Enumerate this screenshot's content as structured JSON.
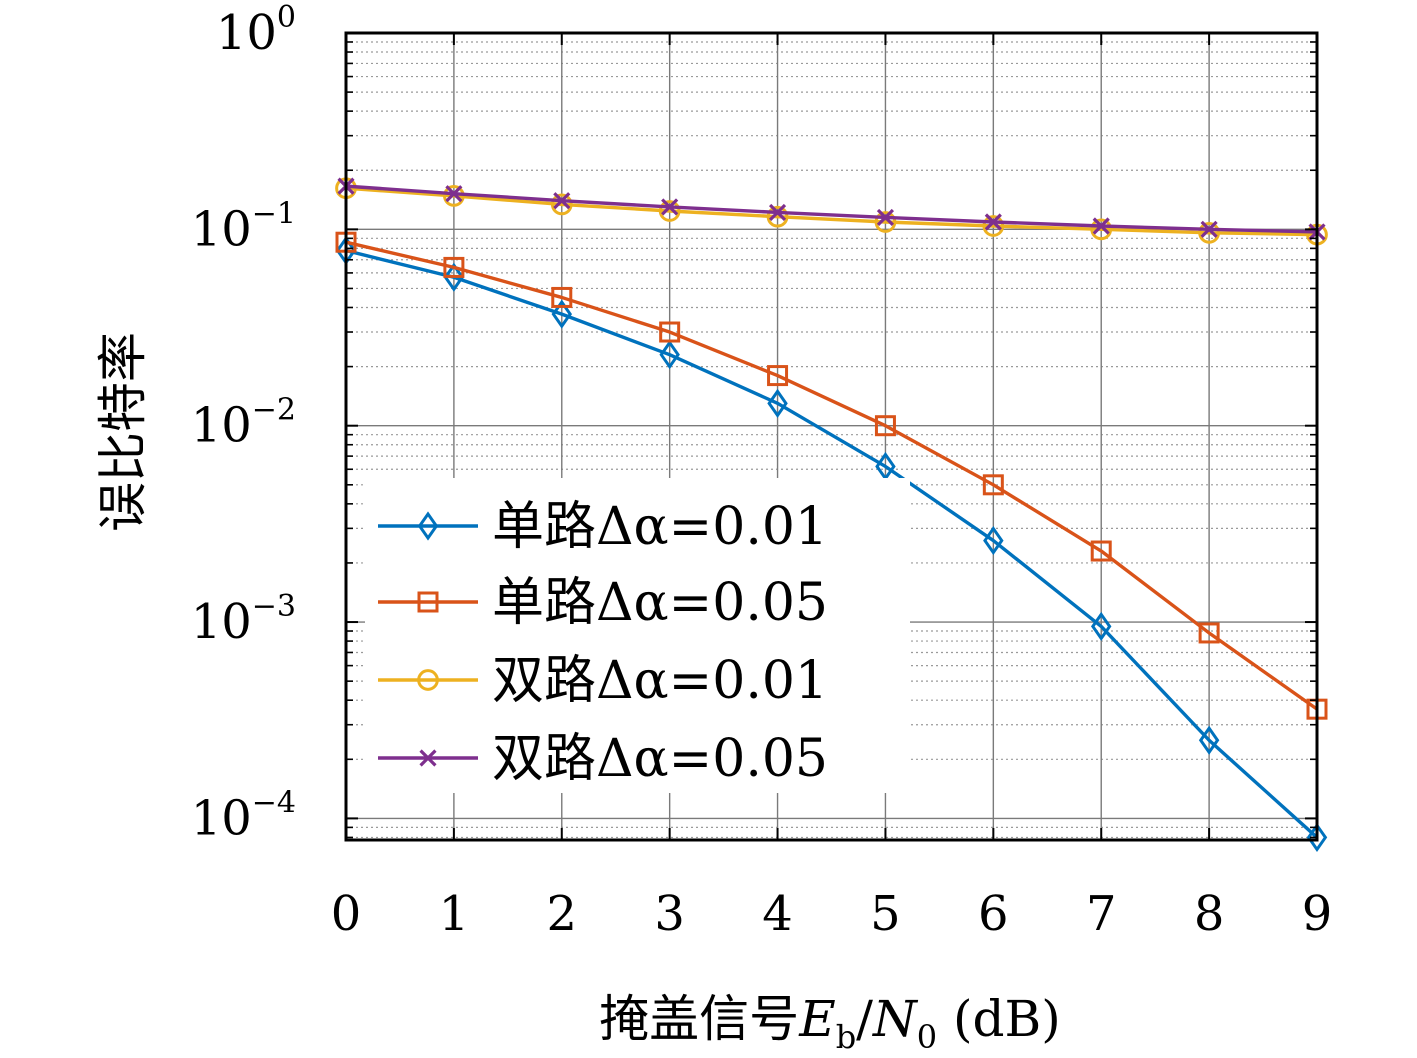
{
  "chart_data": {
    "type": "line",
    "title": "",
    "xlabel": "掩盖信号E_b/N_0 (dB)",
    "xlabel_parts": {
      "prefix": "掩盖信号",
      "E": "E",
      "b": "b",
      "slash": "/",
      "N": "N",
      "zero": "0",
      "suffix": " (dB)"
    },
    "ylabel": "误比特率",
    "x": [
      0,
      1,
      2,
      3,
      4,
      5,
      6,
      7,
      8,
      9
    ],
    "xlim": [
      0,
      9
    ],
    "ylim": [
      0.0001,
      1
    ],
    "yscale": "log",
    "grid": true,
    "legend_position": "bottom-left",
    "x_ticks": [
      "0",
      "1",
      "2",
      "3",
      "4",
      "5",
      "6",
      "7",
      "8",
      "9"
    ],
    "y_ticks": [
      {
        "value": 1,
        "base": "10",
        "exp": "0"
      },
      {
        "value": 0.1,
        "base": "10",
        "exp": "−1"
      },
      {
        "value": 0.01,
        "base": "10",
        "exp": "−2"
      },
      {
        "value": 0.001,
        "base": "10",
        "exp": "−3"
      },
      {
        "value": 0.0001,
        "base": "10",
        "exp": "−4"
      }
    ],
    "series": [
      {
        "name": "单路Δα=0.01",
        "color": "#0072BD",
        "marker": "diamond",
        "values": [
          0.078,
          0.057,
          0.037,
          0.023,
          0.013,
          0.0062,
          0.0026,
          0.00095,
          0.00025,
          8e-05
        ]
      },
      {
        "name": "单路Δα=0.05",
        "color": "#D95319",
        "marker": "square",
        "values": [
          0.086,
          0.064,
          0.045,
          0.03,
          0.018,
          0.01,
          0.005,
          0.0023,
          0.00088,
          0.00036
        ]
      },
      {
        "name": "双路Δα=0.01",
        "color": "#EDB120",
        "marker": "circle",
        "values": [
          0.162,
          0.148,
          0.134,
          0.124,
          0.116,
          0.109,
          0.104,
          0.1,
          0.096,
          0.094
        ]
      },
      {
        "name": "双路Δα=0.05",
        "color": "#7E2F8E",
        "marker": "x",
        "values": [
          0.166,
          0.152,
          0.14,
          0.13,
          0.122,
          0.115,
          0.109,
          0.104,
          0.1,
          0.097
        ]
      }
    ]
  }
}
